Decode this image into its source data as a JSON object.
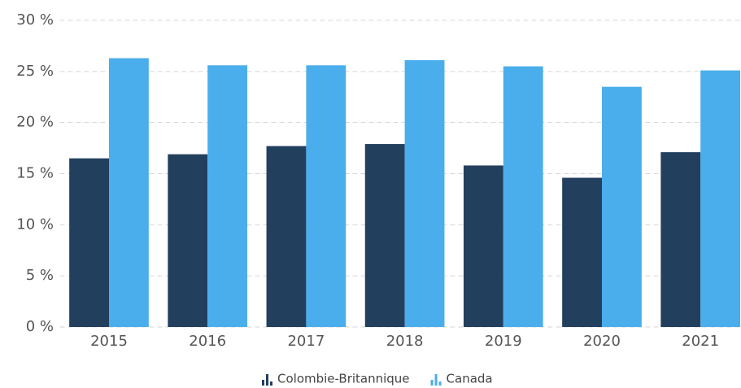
{
  "chart_data": {
    "type": "bar",
    "categories": [
      "2015",
      "2016",
      "2017",
      "2018",
      "2019",
      "2020",
      "2021"
    ],
    "series": [
      {
        "name": "Colombie-Britannique",
        "color": "#233f5e",
        "values": [
          16.5,
          16.9,
          17.7,
          17.9,
          15.8,
          14.6,
          17.1
        ]
      },
      {
        "name": "Canada",
        "color": "#4aaeec",
        "values": [
          26.3,
          25.6,
          25.6,
          26.1,
          25.5,
          23.5,
          25.1
        ]
      }
    ],
    "ylim": [
      0,
      30
    ],
    "yticks": [
      {
        "value": 0,
        "label": "0 %"
      },
      {
        "value": 5,
        "label": "5 %"
      },
      {
        "value": 10,
        "label": "10 %"
      },
      {
        "value": 15,
        "label": "15 %"
      },
      {
        "value": 20,
        "label": "20 %"
      },
      {
        "value": 25,
        "label": "25 %"
      },
      {
        "value": 30,
        "label": "30 %"
      }
    ],
    "grid": true
  }
}
